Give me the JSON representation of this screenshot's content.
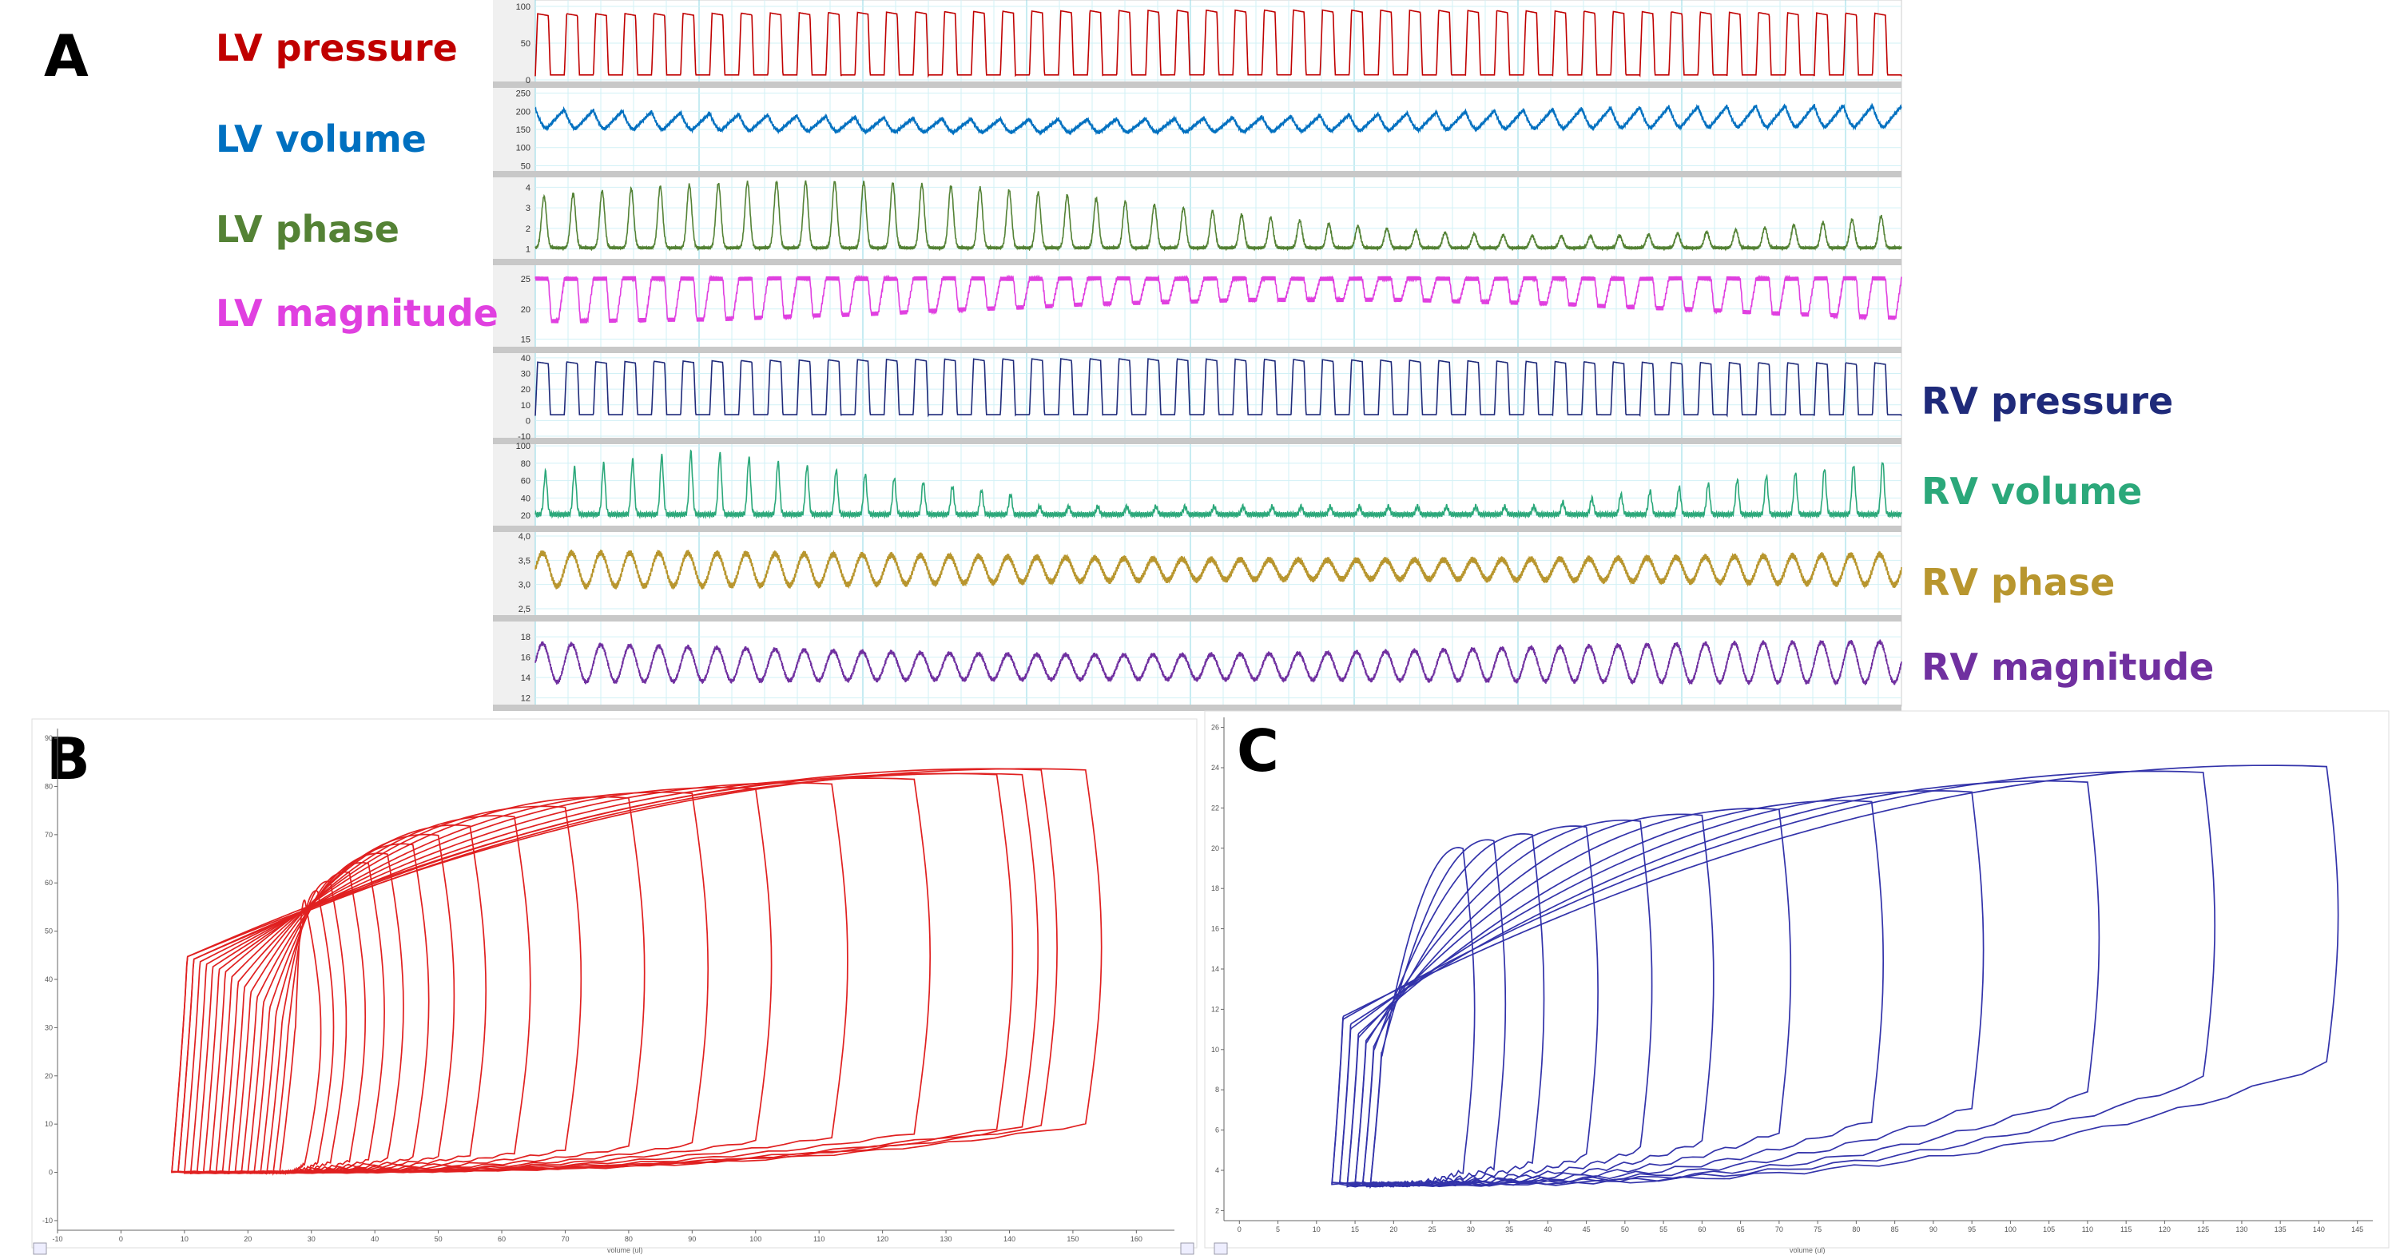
{
  "panels": {
    "A": {
      "letter": "A",
      "traces": [
        {
          "id": "lv-pressure",
          "label": "LV pressure",
          "color": "#C00000",
          "side": "left",
          "ticks": [
            "100",
            "50",
            "0"
          ],
          "tick_values": [
            100,
            50,
            0
          ],
          "range": [
            0,
            100
          ],
          "shape": "pressure",
          "base": 0.05,
          "amp": [
            0.85,
            0.9
          ]
        },
        {
          "id": "lv-volume",
          "label": "LV volume",
          "color": "#0070C0",
          "side": "left",
          "ticks": [
            "250",
            "200",
            "150",
            "100",
            "50"
          ],
          "tick_values": [
            250,
            200,
            150,
            100,
            50
          ],
          "range": [
            40,
            260
          ],
          "shape": "volume",
          "base": 0.35,
          "amp": [
            0.45,
            0.28
          ]
        },
        {
          "id": "lv-phase",
          "label": "LV phase",
          "color": "#548235",
          "side": "left",
          "ticks": [
            "4",
            "3",
            "2",
            "1"
          ],
          "tick_values": [
            4,
            3,
            2,
            1
          ],
          "range": [
            0.6,
            4.4
          ],
          "shape": "phase",
          "base": 0.12,
          "amp": [
            0.15,
            0.85
          ]
        },
        {
          "id": "lv-magnitude",
          "label": "LV magnitude",
          "color": "#E040E0",
          "side": "left",
          "ticks": [
            "25",
            "20",
            "15"
          ],
          "tick_values": [
            25,
            20,
            15
          ],
          "range": [
            14,
            27
          ],
          "shape": "magnitude",
          "base": 0.85,
          "amp": [
            0.3,
            0.6
          ]
        },
        {
          "id": "rv-pressure",
          "label": "RV pressure",
          "color": "#1F2A7A",
          "side": "right",
          "ticks": [
            "40",
            "30",
            "20",
            "10",
            "0",
            "-10"
          ],
          "tick_values": [
            40,
            30,
            20,
            10,
            0,
            -10
          ],
          "range": [
            -10,
            42
          ],
          "shape": "pressure",
          "base": 0.25,
          "amp": [
            0.7,
            0.65
          ]
        },
        {
          "id": "rv-volume",
          "label": "RV volume",
          "color": "#2BA87A",
          "side": "right",
          "ticks": [
            "100",
            "80",
            "60",
            "40",
            "20"
          ],
          "tick_values": [
            100,
            80,
            60,
            40,
            20
          ],
          "range": [
            10,
            102
          ],
          "shape": "rvvolume",
          "base": 0.12,
          "amp": [
            0.8,
            0.2
          ]
        },
        {
          "id": "rv-phase",
          "label": "RV phase",
          "color": "#B8962E",
          "side": "right",
          "ticks": [
            "4,0",
            "3,5",
            "3,0",
            "2,5"
          ],
          "tick_values": [
            4.0,
            3.5,
            3.0,
            2.5
          ],
          "range": [
            2.4,
            4.05
          ],
          "shape": "rvphase",
          "base": 0.55,
          "amp": [
            0.35,
            0.2
          ]
        },
        {
          "id": "rv-magnitude",
          "label": "RV magnitude",
          "color": "#7030A0",
          "side": "right",
          "ticks": [
            "18",
            "16",
            "14",
            "12"
          ],
          "tick_values": [
            18,
            16,
            14,
            12
          ],
          "range": [
            11.5,
            19.5
          ],
          "shape": "rvmag",
          "base": 0.35,
          "amp": [
            0.5,
            0.3
          ]
        }
      ]
    },
    "B": {
      "letter": "B",
      "color": "#E02020",
      "x_ticks": [
        "-10",
        "0",
        "10",
        "20",
        "30",
        "40",
        "50",
        "60",
        "70",
        "80",
        "90",
        "100",
        "110",
        "120",
        "130",
        "140",
        "150",
        "160"
      ],
      "x_range": [
        -10,
        166
      ],
      "y_ticks": [
        "90",
        "80",
        "70",
        "60",
        "50",
        "40",
        "30",
        "20",
        "10",
        "0",
        "-10"
      ],
      "y_range": [
        -12,
        92
      ],
      "x_label": "volume (ul)",
      "loops": [
        {
          "v_max": 152,
          "v_min": 8,
          "p_peak": 86
        },
        {
          "v_max": 145,
          "v_min": 8,
          "p_peak": 86
        },
        {
          "v_max": 142,
          "v_min": 9,
          "p_peak": 85
        },
        {
          "v_max": 138,
          "v_min": 9,
          "p_peak": 85
        },
        {
          "v_max": 125,
          "v_min": 10,
          "p_peak": 84
        },
        {
          "v_max": 112,
          "v_min": 11,
          "p_peak": 83
        },
        {
          "v_max": 100,
          "v_min": 12,
          "p_peak": 82
        },
        {
          "v_max": 90,
          "v_min": 13,
          "p_peak": 81
        },
        {
          "v_max": 80,
          "v_min": 14,
          "p_peak": 80
        },
        {
          "v_max": 70,
          "v_min": 15,
          "p_peak": 78
        },
        {
          "v_max": 62,
          "v_min": 16,
          "p_peak": 76
        },
        {
          "v_max": 55,
          "v_min": 17,
          "p_peak": 74
        },
        {
          "v_max": 50,
          "v_min": 18,
          "p_peak": 72
        },
        {
          "v_max": 46,
          "v_min": 19,
          "p_peak": 70
        },
        {
          "v_max": 42,
          "v_min": 20,
          "p_peak": 68
        },
        {
          "v_max": 39,
          "v_min": 21,
          "p_peak": 66
        },
        {
          "v_max": 36,
          "v_min": 22,
          "p_peak": 64
        },
        {
          "v_max": 33,
          "v_min": 23,
          "p_peak": 62
        },
        {
          "v_max": 31,
          "v_min": 24,
          "p_peak": 60
        },
        {
          "v_max": 29,
          "v_min": 25,
          "p_peak": 58
        }
      ]
    },
    "C": {
      "letter": "C",
      "color": "#3333AA",
      "x_ticks": [
        "0",
        "5",
        "10",
        "15",
        "20",
        "25",
        "30",
        "35",
        "40",
        "45",
        "50",
        "55",
        "60",
        "65",
        "70",
        "75",
        "80",
        "85",
        "90",
        "95",
        "100",
        "105",
        "110",
        "115",
        "120",
        "125",
        "130",
        "135",
        "140",
        "145"
      ],
      "x_range": [
        -2,
        147
      ],
      "y_ticks": [
        "26",
        "24",
        "22",
        "20",
        "18",
        "16",
        "14",
        "12",
        "10",
        "8",
        "6",
        "4",
        "2"
      ],
      "y_range": [
        1.5,
        26.5
      ],
      "x_label": "volume (ul)",
      "loops": [
        {
          "v_max": 141,
          "v_min": 12,
          "p_peak": 24.8
        },
        {
          "v_max": 125,
          "v_min": 12,
          "p_peak": 24.5
        },
        {
          "v_max": 110,
          "v_min": 13,
          "p_peak": 24.0
        },
        {
          "v_max": 95,
          "v_min": 13,
          "p_peak": 23.5
        },
        {
          "v_max": 82,
          "v_min": 14,
          "p_peak": 23.0
        },
        {
          "v_max": 70,
          "v_min": 14,
          "p_peak": 22.6
        },
        {
          "v_max": 60,
          "v_min": 15,
          "p_peak": 22.3
        },
        {
          "v_max": 52,
          "v_min": 15,
          "p_peak": 22.0
        },
        {
          "v_max": 45,
          "v_min": 16,
          "p_peak": 21.7
        },
        {
          "v_max": 38,
          "v_min": 16,
          "p_peak": 21.3
        },
        {
          "v_max": 33,
          "v_min": 17,
          "p_peak": 21.0
        },
        {
          "v_max": 29,
          "v_min": 17,
          "p_peak": 20.6
        }
      ]
    }
  },
  "chart_data": [
    {
      "type": "line",
      "title": "",
      "panel": "A",
      "series": [
        {
          "name": "LV pressure",
          "y_range": [
            0,
            100
          ]
        },
        {
          "name": "LV volume",
          "y_range": [
            50,
            250
          ]
        },
        {
          "name": "LV phase",
          "y_range": [
            1,
            4
          ]
        },
        {
          "name": "LV magnitude",
          "y_range": [
            15,
            25
          ]
        },
        {
          "name": "RV pressure",
          "y_range": [
            -10,
            40
          ]
        },
        {
          "name": "RV volume",
          "y_range": [
            20,
            100
          ]
        },
        {
          "name": "RV phase",
          "y_range": [
            2.5,
            4.0
          ]
        },
        {
          "name": "RV magnitude",
          "y_range": [
            12,
            18
          ]
        }
      ],
      "grid": true
    },
    {
      "type": "line",
      "panel": "B",
      "xlabel": "volume (ul)",
      "xlim": [
        -10,
        160
      ],
      "ylim": [
        -10,
        90
      ],
      "grid": false
    },
    {
      "type": "line",
      "panel": "C",
      "xlabel": "volume (ul)",
      "xlim": [
        0,
        145
      ],
      "ylim": [
        2,
        26
      ],
      "grid": false
    }
  ]
}
